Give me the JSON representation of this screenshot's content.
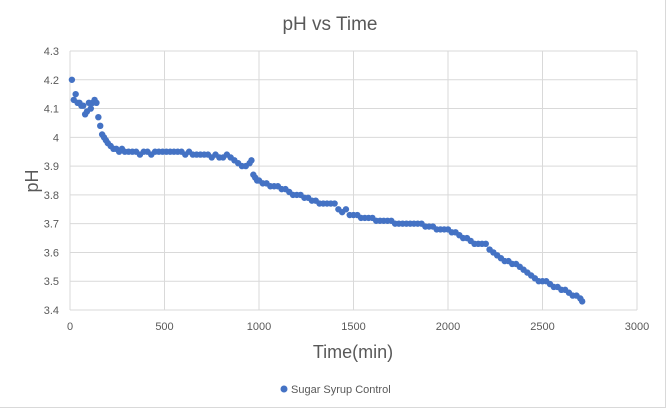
{
  "chart_data": {
    "type": "scatter",
    "title": "pH vs Time",
    "xlabel": "Time(min)",
    "ylabel": "pH",
    "xlim": [
      0,
      3000
    ],
    "ylim": [
      3.4,
      4.3
    ],
    "xticks": [
      0,
      500,
      1000,
      1500,
      2000,
      2500,
      3000
    ],
    "yticks": [
      3.4,
      3.5,
      3.6,
      3.7,
      3.8,
      3.9,
      4,
      4.1,
      4.2,
      4.3
    ],
    "ytick_labels": [
      "3.4",
      "3.5",
      "3.6",
      "3.7",
      "3.8",
      "3.9",
      "4",
      "4.1",
      "4.2",
      "4.3"
    ],
    "grid": true,
    "legend_position": "bottom",
    "marker_color": "#4472c4",
    "series": [
      {
        "name": "Sugar Syrup Control",
        "x": [
          10,
          20,
          30,
          40,
          50,
          60,
          70,
          80,
          90,
          100,
          110,
          120,
          130,
          140,
          150,
          160,
          170,
          180,
          190,
          200,
          215,
          230,
          245,
          260,
          275,
          290,
          310,
          330,
          350,
          370,
          390,
          410,
          430,
          450,
          470,
          490,
          510,
          530,
          550,
          570,
          590,
          610,
          630,
          650,
          670,
          690,
          710,
          730,
          750,
          770,
          790,
          810,
          830,
          850,
          870,
          890,
          910,
          930,
          950,
          960,
          970,
          980,
          990,
          1000,
          1020,
          1040,
          1060,
          1080,
          1100,
          1120,
          1140,
          1160,
          1180,
          1200,
          1220,
          1240,
          1260,
          1280,
          1300,
          1320,
          1340,
          1360,
          1380,
          1400,
          1420,
          1440,
          1460,
          1480,
          1500,
          1520,
          1540,
          1560,
          1580,
          1600,
          1620,
          1640,
          1660,
          1680,
          1700,
          1720,
          1740,
          1760,
          1780,
          1800,
          1820,
          1840,
          1860,
          1880,
          1900,
          1920,
          1940,
          1960,
          1980,
          2000,
          2020,
          2040,
          2060,
          2080,
          2100,
          2120,
          2140,
          2160,
          2180,
          2200,
          2220,
          2240,
          2260,
          2280,
          2300,
          2320,
          2340,
          2360,
          2380,
          2400,
          2420,
          2440,
          2460,
          2480,
          2500,
          2520,
          2540,
          2560,
          2580,
          2600,
          2620,
          2640,
          2660,
          2680,
          2700,
          2710
        ],
        "y": [
          4.2,
          4.13,
          4.15,
          4.12,
          4.12,
          4.11,
          4.11,
          4.08,
          4.09,
          4.12,
          4.1,
          4.12,
          4.13,
          4.12,
          4.07,
          4.04,
          4.01,
          4.0,
          3.99,
          3.98,
          3.97,
          3.96,
          3.96,
          3.95,
          3.96,
          3.95,
          3.95,
          3.95,
          3.95,
          3.94,
          3.95,
          3.95,
          3.94,
          3.95,
          3.95,
          3.95,
          3.95,
          3.95,
          3.95,
          3.95,
          3.95,
          3.94,
          3.95,
          3.94,
          3.94,
          3.94,
          3.94,
          3.94,
          3.93,
          3.94,
          3.93,
          3.93,
          3.94,
          3.93,
          3.92,
          3.91,
          3.9,
          3.9,
          3.91,
          3.92,
          3.87,
          3.86,
          3.85,
          3.85,
          3.84,
          3.84,
          3.83,
          3.83,
          3.83,
          3.82,
          3.82,
          3.81,
          3.8,
          3.8,
          3.8,
          3.79,
          3.79,
          3.78,
          3.78,
          3.77,
          3.77,
          3.77,
          3.77,
          3.77,
          3.75,
          3.74,
          3.75,
          3.73,
          3.73,
          3.73,
          3.72,
          3.72,
          3.72,
          3.72,
          3.71,
          3.71,
          3.71,
          3.71,
          3.71,
          3.7,
          3.7,
          3.7,
          3.7,
          3.7,
          3.7,
          3.7,
          3.7,
          3.69,
          3.69,
          3.69,
          3.68,
          3.68,
          3.68,
          3.68,
          3.67,
          3.67,
          3.66,
          3.65,
          3.65,
          3.64,
          3.63,
          3.63,
          3.63,
          3.63,
          3.61,
          3.6,
          3.59,
          3.58,
          3.57,
          3.57,
          3.56,
          3.56,
          3.55,
          3.54,
          3.53,
          3.52,
          3.51,
          3.5,
          3.5,
          3.5,
          3.49,
          3.48,
          3.48,
          3.47,
          3.47,
          3.46,
          3.45,
          3.45,
          3.44,
          3.43
        ]
      }
    ]
  }
}
